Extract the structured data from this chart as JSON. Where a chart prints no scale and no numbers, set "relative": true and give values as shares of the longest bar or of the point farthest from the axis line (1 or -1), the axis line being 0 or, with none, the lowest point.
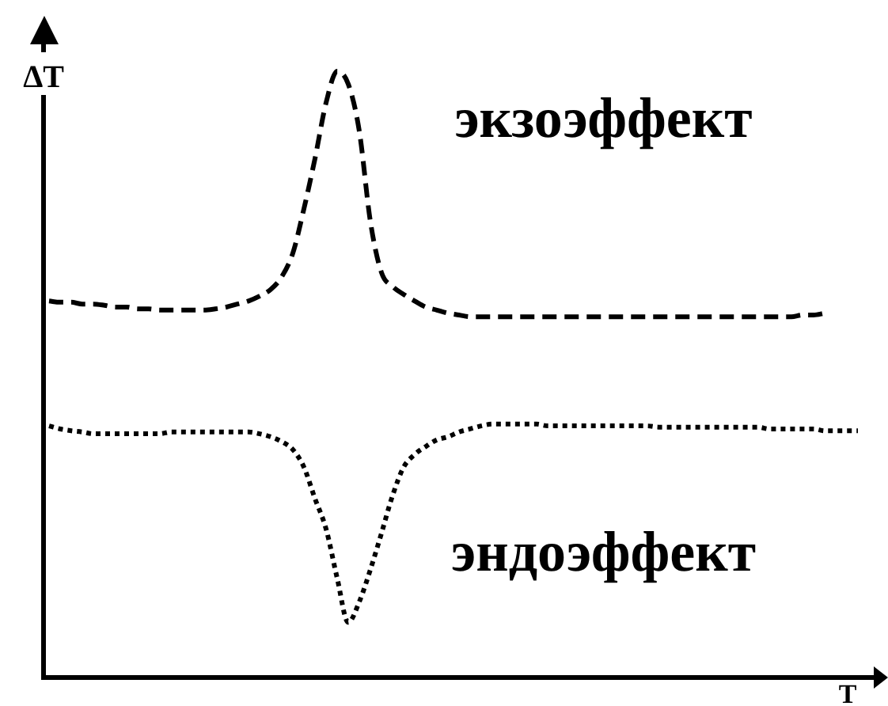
{
  "chart_data": {
    "type": "line",
    "xlabel": "T",
    "ylabel": "ΔT",
    "relative": true,
    "marker": "none",
    "legend": false,
    "categories": [
      null,
      null,
      null,
      null,
      null,
      null,
      null,
      null,
      null,
      null,
      null,
      null,
      null,
      null,
      null,
      null,
      null,
      null,
      null,
      null,
      null,
      null,
      null,
      null,
      null,
      null,
      null,
      null,
      null,
      null,
      null,
      null,
      null,
      null,
      null,
      null,
      null,
      null,
      null,
      null,
      null,
      null,
      null,
      null,
      null,
      null,
      null,
      null,
      null,
      null,
      null,
      null,
      null,
      null,
      null,
      null,
      null,
      null,
      null,
      null,
      null,
      null,
      null,
      null,
      null,
      null,
      null,
      null,
      null,
      null,
      null,
      null,
      null,
      null
    ],
    "series": [
      {
        "name": "экзоэффект",
        "color": "#000000",
        "line_style": "dashed",
        "values": [
          0.621,
          0.619,
          0.619,
          0.616,
          0.616,
          0.614,
          0.611,
          0.611,
          0.608,
          0.608,
          0.606,
          0.606,
          0.606,
          0.606,
          0.606,
          0.608,
          0.611,
          0.616,
          0.621,
          0.629,
          0.64,
          0.661,
          0.7,
          0.773,
          0.856,
          0.948,
          1,
          0.979,
          0.901,
          0.752,
          0.668,
          0.645,
          0.632,
          0.621,
          0.611,
          0.606,
          0.601,
          0.598,
          0.595,
          0.595,
          0.595,
          0.595,
          0.595,
          0.595,
          0.595,
          0.595,
          0.595,
          0.595,
          0.595,
          0.595,
          0.595,
          0.595,
          0.595,
          0.595,
          0.595,
          0.595,
          0.595,
          0.595,
          0.595,
          0.595,
          0.595,
          0.595,
          0.595,
          0.595,
          0.595,
          0.595,
          0.595,
          0.595,
          0.598,
          0.598,
          0.601,
          null,
          null,
          null
        ]
      },
      {
        "name": "эндоэффект",
        "color": "#000000",
        "line_style": "dotted",
        "values": [
          0.415,
          0.41,
          0.407,
          0.405,
          0.402,
          0.402,
          0.402,
          0.402,
          0.402,
          0.402,
          0.402,
          0.405,
          0.405,
          0.405,
          0.405,
          0.405,
          0.405,
          0.405,
          0.405,
          0.402,
          0.397,
          0.389,
          0.376,
          0.347,
          0.295,
          0.245,
          0.164,
          0.091,
          0.125,
          0.178,
          0.238,
          0.3,
          0.347,
          0.368,
          0.381,
          0.392,
          0.397,
          0.405,
          0.41,
          0.415,
          0.418,
          0.418,
          0.418,
          0.418,
          0.418,
          0.415,
          0.415,
          0.415,
          0.415,
          0.415,
          0.415,
          0.415,
          0.415,
          0.415,
          0.415,
          0.413,
          0.413,
          0.413,
          0.413,
          0.413,
          0.413,
          0.413,
          0.413,
          0.413,
          0.413,
          0.41,
          0.41,
          0.41,
          0.41,
          0.41,
          0.407,
          0.407,
          0.407,
          0.407
        ]
      }
    ]
  }
}
